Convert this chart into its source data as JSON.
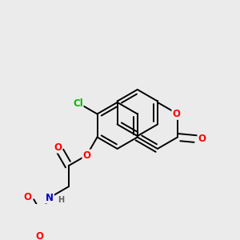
{
  "bg_color": "#ebebeb",
  "bond_color": "#000000",
  "bond_width": 1.4,
  "dbo": 0.055,
  "atom_colors": {
    "O": "#ff0000",
    "N": "#0000cc",
    "Cl": "#00bb00",
    "H": "#606060"
  },
  "fs": 8.5
}
